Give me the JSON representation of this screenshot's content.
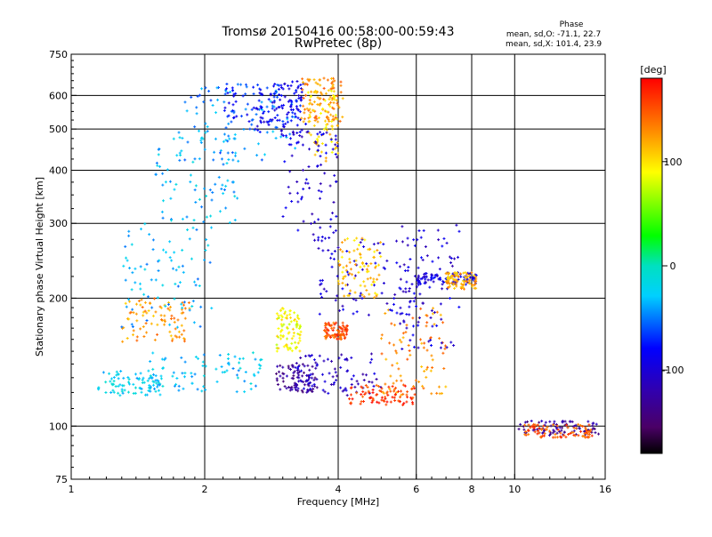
{
  "chart_data": {
    "type": "scatter",
    "title": "Tromsø 20150416 00:58:00-00:59:43",
    "subtitle": "RwPretec (8p)",
    "xlabel": "Frequency [MHz]",
    "ylabel": "Stationary phase Virtual Height [km]",
    "x_scale": "log",
    "y_scale": "log",
    "xlim": [
      1,
      16
    ],
    "ylim": [
      75,
      750
    ],
    "x_ticks": [
      1,
      2,
      4,
      6,
      8,
      10,
      16
    ],
    "x_tick_labels": [
      "1",
      "2",
      "4",
      "6",
      "8",
      "10",
      "16"
    ],
    "x_grid": [
      2,
      4,
      6,
      8,
      10
    ],
    "y_ticks": [
      75,
      100,
      200,
      300,
      400,
      500,
      600,
      750
    ],
    "y_tick_labels": [
      "75",
      "100",
      "200",
      "300",
      "400",
      "500",
      "600",
      "750"
    ],
    "y_grid": [
      100,
      200,
      300,
      400,
      500,
      600
    ],
    "grid": true,
    "phase_box": {
      "heading": "Phase",
      "line_o": "mean, sd,O: -71.1, 22.7",
      "line_x": "mean, sd,X: 101.4, 23.9"
    },
    "colorbar": {
      "label": "[deg]",
      "range": [
        -180,
        180
      ],
      "ticks": [
        100,
        0,
        -100
      ],
      "tick_labels": [
        "100",
        "0",
        "-100"
      ],
      "colormap": "rainbow (black-purple-blue-cyan-green-yellow-orange-red)"
    },
    "series": [
      {
        "clusters": [
          {
            "x": [
              1.15,
              1.6
            ],
            "y": [
              118,
              135
            ],
            "phase": -25
          },
          {
            "x": [
              1.5,
              2.7
            ],
            "y": [
              120,
              150
            ],
            "phase": -28
          },
          {
            "x": [
              1.3,
              1.85
            ],
            "y": [
              158,
              200
            ],
            "phase": 125
          },
          {
            "x": [
              1.3,
              2.1
            ],
            "y": [
              170,
              300
            ],
            "phase": -35
          },
          {
            "x": [
              1.55,
              2.4
            ],
            "y": [
              300,
              500
            ],
            "phase": -32
          },
          {
            "x": [
              1.8,
              3.2
            ],
            "y": [
              420,
              640
            ],
            "phase": -45
          },
          {
            "x": [
              2.2,
              3.3
            ],
            "y": [
              520,
              640
            ],
            "phase": -75
          },
          {
            "x": [
              2.6,
              3.4
            ],
            "y": [
              480,
              650
            ],
            "phase": -90
          },
          {
            "x": [
              3.3,
              4.1
            ],
            "y": [
              520,
              660
            ],
            "phase": 130
          },
          {
            "x": [
              3.4,
              4.0
            ],
            "y": [
              420,
              620
            ],
            "phase": 105
          },
          {
            "x": [
              3.0,
              4.0
            ],
            "y": [
              270,
              500
            ],
            "phase": -100
          },
          {
            "x": [
              2.9,
              3.6
            ],
            "y": [
              120,
              140
            ],
            "phase": -130
          },
          {
            "x": [
              3.2,
              5.0
            ],
            "y": [
              118,
              148
            ],
            "phase": -110
          },
          {
            "x": [
              3.7,
              4.2
            ],
            "y": [
              160,
              175
            ],
            "phase": 150
          },
          {
            "x": [
              4.2,
              6.0
            ],
            "y": [
              112,
              125
            ],
            "phase": 160
          },
          {
            "x": [
              5.0,
              7.0
            ],
            "y": [
              118,
              190
            ],
            "phase": 130
          },
          {
            "x": [
              5.5,
              7.5
            ],
            "y": [
              150,
              300
            ],
            "phase": -100
          },
          {
            "x": [
              2.9,
              3.3
            ],
            "y": [
              150,
              190
            ],
            "phase": 90
          },
          {
            "x": [
              3.6,
              6.0
            ],
            "y": [
              180,
              280
            ],
            "phase": -100
          },
          {
            "x": [
              4.0,
              5.0
            ],
            "y": [
              200,
              280
            ],
            "phase": 110
          },
          {
            "x": [
              6.0,
              8.2
            ],
            "y": [
              215,
              230
            ],
            "phase": -95
          },
          {
            "x": [
              7.0,
              8.2
            ],
            "y": [
              210,
              230
            ],
            "phase": 120
          },
          {
            "x": [
              10.2,
              15.5
            ],
            "y": [
              95,
              103
            ],
            "phase": -130
          },
          {
            "x": [
              10.5,
              15.0
            ],
            "y": [
              94,
              101
            ],
            "phase": 150
          }
        ]
      }
    ]
  }
}
